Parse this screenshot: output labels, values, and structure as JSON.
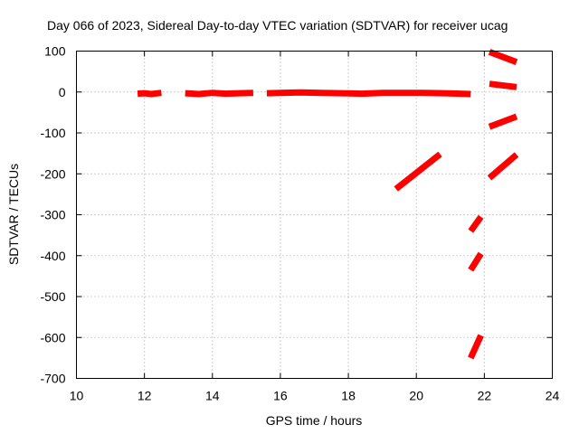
{
  "chart_data": {
    "type": "line",
    "title": "Day 066 of 2023, Sidereal Day-to-day VTEC variation (SDTVAR) for receiver ucag",
    "xlabel": "GPS time / hours",
    "ylabel": "SDTVAR / TECUs",
    "xlim": [
      10,
      24
    ],
    "ylim": [
      -700,
      100
    ],
    "xticks": [
      "10",
      "12",
      "14",
      "16",
      "18",
      "20",
      "22",
      "24"
    ],
    "yticks": [
      "100",
      "0",
      "-100",
      "-200",
      "-300",
      "-400",
      "-500",
      "-600",
      "-700"
    ],
    "grid": true,
    "series_color": "#ff0000",
    "segments": [
      {
        "x": [
          11.8,
          12.0,
          12.2,
          12.5
        ],
        "y": [
          -4,
          -3,
          -5,
          -2
        ]
      },
      {
        "x": [
          13.2,
          13.6,
          14.0,
          14.4,
          14.8,
          15.2
        ],
        "y": [
          -3,
          -5,
          -2,
          -4,
          -3,
          -2
        ]
      },
      {
        "x": [
          15.6,
          16.0,
          16.6,
          17.2,
          17.8,
          18.4,
          19.0,
          19.6,
          20.2,
          20.8,
          21.3,
          21.6
        ],
        "y": [
          -3,
          -2,
          -1,
          -2,
          -3,
          -4,
          -2,
          -2,
          -2,
          -3,
          -4,
          -5
        ]
      },
      {
        "x": [
          19.4,
          20.7
        ],
        "y": [
          -237,
          -152
        ]
      },
      {
        "x": [
          21.6,
          21.9
        ],
        "y": [
          -340,
          -305
        ]
      },
      {
        "x": [
          21.6,
          21.9
        ],
        "y": [
          -435,
          -395
        ]
      },
      {
        "x": [
          21.6,
          21.9
        ],
        "y": [
          -650,
          -595
        ]
      },
      {
        "x": [
          22.15,
          22.95
        ],
        "y": [
          98,
          73
        ]
      },
      {
        "x": [
          22.15,
          22.95
        ],
        "y": [
          20,
          12
        ]
      },
      {
        "x": [
          22.15,
          22.95
        ],
        "y": [
          -85,
          -60
        ]
      },
      {
        "x": [
          22.15,
          22.95
        ],
        "y": [
          -210,
          -153
        ]
      }
    ]
  }
}
